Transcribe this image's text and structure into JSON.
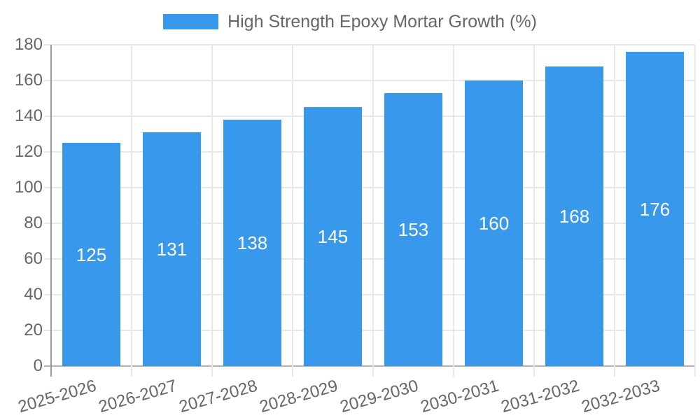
{
  "chart_data": {
    "type": "bar",
    "title": "High Strength Epoxy Mortar Growth (%)",
    "legend": {
      "position": "top",
      "entries": [
        "High Strength Epoxy Mortar Growth (%)"
      ]
    },
    "categories": [
      "2025-2026",
      "2026-2027",
      "2027-2028",
      "2028-2029",
      "2029-2030",
      "2030-2031",
      "2031-2032",
      "2032-2033"
    ],
    "values": [
      125,
      131,
      138,
      145,
      153,
      160,
      168,
      176
    ],
    "xlabel": "",
    "ylabel": "",
    "ylim": [
      0,
      180
    ],
    "y_ticks": [
      0,
      20,
      40,
      60,
      80,
      100,
      120,
      140,
      160,
      180
    ],
    "x_tick_rotation_deg": -16,
    "grid": true,
    "colors": {
      "bar": "#3899EC",
      "bar_value_text": "#FFFFFF",
      "tick_text": "#666666",
      "legend_text": "#666666",
      "grid_line": "#E8E8E8",
      "y_axis_line": "#9A9A9A",
      "x_axis_line": "#B2B2B2",
      "background": "#FFFFFF"
    }
  }
}
